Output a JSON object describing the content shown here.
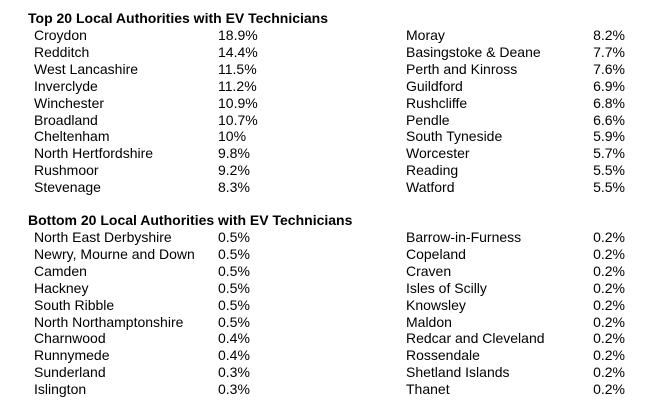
{
  "sections": [
    {
      "title": "Top 20 Local Authorities with EV Technicians",
      "left": [
        [
          "Croydon",
          "18.9%"
        ],
        [
          "Redditch",
          "14.4%"
        ],
        [
          "West Lancashire",
          "11.5%"
        ],
        [
          "Inverclyde",
          "11.2%"
        ],
        [
          "Winchester",
          "10.9%"
        ],
        [
          "Broadland",
          "10.7%"
        ],
        [
          "Cheltenham",
          "10%"
        ],
        [
          "North Hertfordshire",
          "9.8%"
        ],
        [
          "Rushmoor",
          "9.2%"
        ],
        [
          "Stevenage",
          "8.3%"
        ]
      ],
      "right": [
        [
          "Moray",
          "8.2%"
        ],
        [
          "Basingstoke & Deane",
          "7.7%"
        ],
        [
          "Perth and Kinross",
          "7.6%"
        ],
        [
          "Guildford",
          "6.9%"
        ],
        [
          "Rushcliffe",
          "6.8%"
        ],
        [
          "Pendle",
          "6.6%"
        ],
        [
          "South Tyneside",
          "5.9%"
        ],
        [
          "Worcester",
          "5.7%"
        ],
        [
          "Reading",
          "5.5%"
        ],
        [
          "Watford",
          "5.5%"
        ]
      ]
    },
    {
      "title": "Bottom 20 Local Authorities with EV Technicians",
      "left": [
        [
          "North East Derbyshire",
          "0.5%"
        ],
        [
          "Newry, Mourne and Down",
          "0.5%"
        ],
        [
          "Camden",
          "0.5%"
        ],
        [
          "Hackney",
          "0.5%"
        ],
        [
          "South Ribble",
          "0.5%"
        ],
        [
          "North Northamptonshire",
          "0.5%"
        ],
        [
          "Charnwood",
          "0.4%"
        ],
        [
          "Runnymede",
          "0.4%"
        ],
        [
          "Sunderland",
          "0.3%"
        ],
        [
          "Islington",
          "0.3%"
        ]
      ],
      "right": [
        [
          "Barrow-in-Furness",
          "0.2%"
        ],
        [
          "Copeland",
          "0.2%"
        ],
        [
          "Craven",
          "0.2%"
        ],
        [
          "Isles of Scilly",
          "0.2%"
        ],
        [
          "Knowsley",
          "0.2%"
        ],
        [
          "Maldon",
          "0.2%"
        ],
        [
          "Redcar and Cleveland",
          "0.2%"
        ],
        [
          "Rossendale",
          "0.2%"
        ],
        [
          "Shetland Islands",
          "0.2%"
        ],
        [
          "Thanet",
          "0.2%"
        ]
      ]
    }
  ]
}
